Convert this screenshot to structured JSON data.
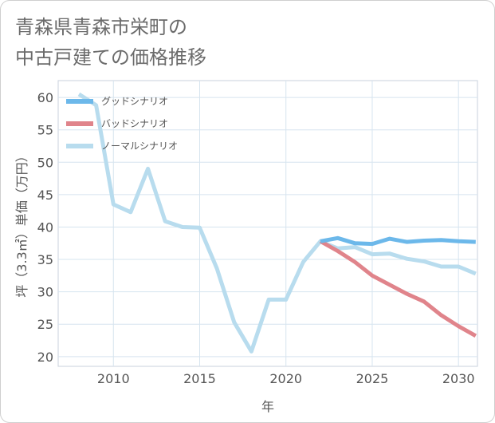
{
  "title": {
    "line1": "青森県青森市栄町の",
    "line2": "中古戸建ての価格推移"
  },
  "chart_data": {
    "type": "line",
    "xlabel": "年",
    "ylabel": "坪（3.3㎡）単価（万円）",
    "xlim": [
      2006.8,
      2031.1
    ],
    "ylim": [
      18.5,
      62.6
    ],
    "xticks": [
      2010,
      2015,
      2020,
      2025,
      2030
    ],
    "yticks": [
      20,
      25,
      30,
      35,
      40,
      45,
      50,
      55,
      60
    ],
    "grid": true,
    "legend_position": "top-left",
    "series": [
      {
        "name": "グッドシナリオ",
        "color": "#6cb8ea",
        "x": [
          2022,
          2023,
          2024,
          2025,
          2026,
          2027,
          2028,
          2029,
          2030,
          2031
        ],
        "y": [
          37.8,
          38.3,
          37.5,
          37.4,
          38.2,
          37.7,
          37.9,
          38.0,
          37.8,
          37.7
        ]
      },
      {
        "name": "バッドシナリオ",
        "color": "#e0848b",
        "x": [
          2022,
          2023,
          2024,
          2025,
          2026,
          2027,
          2028,
          2029,
          2030,
          2031
        ],
        "y": [
          37.8,
          36.3,
          34.6,
          32.5,
          31.1,
          29.7,
          28.5,
          26.4,
          24.7,
          23.2
        ]
      },
      {
        "name": "ノーマルシナリオ",
        "color": "#b8dcee",
        "x": [
          2008,
          2009,
          2010,
          2011,
          2012,
          2013,
          2014,
          2015,
          2016,
          2017,
          2018,
          2019,
          2020,
          2021,
          2022,
          2023,
          2024,
          2025,
          2026,
          2027,
          2028,
          2029,
          2030,
          2031
        ],
        "y": [
          60.5,
          58.8,
          43.5,
          42.3,
          49.0,
          40.9,
          40.0,
          39.9,
          33.6,
          25.3,
          20.8,
          28.8,
          28.8,
          34.6,
          37.8,
          36.7,
          36.9,
          35.8,
          35.9,
          35.1,
          34.7,
          33.9,
          33.9,
          32.8
        ]
      }
    ]
  }
}
